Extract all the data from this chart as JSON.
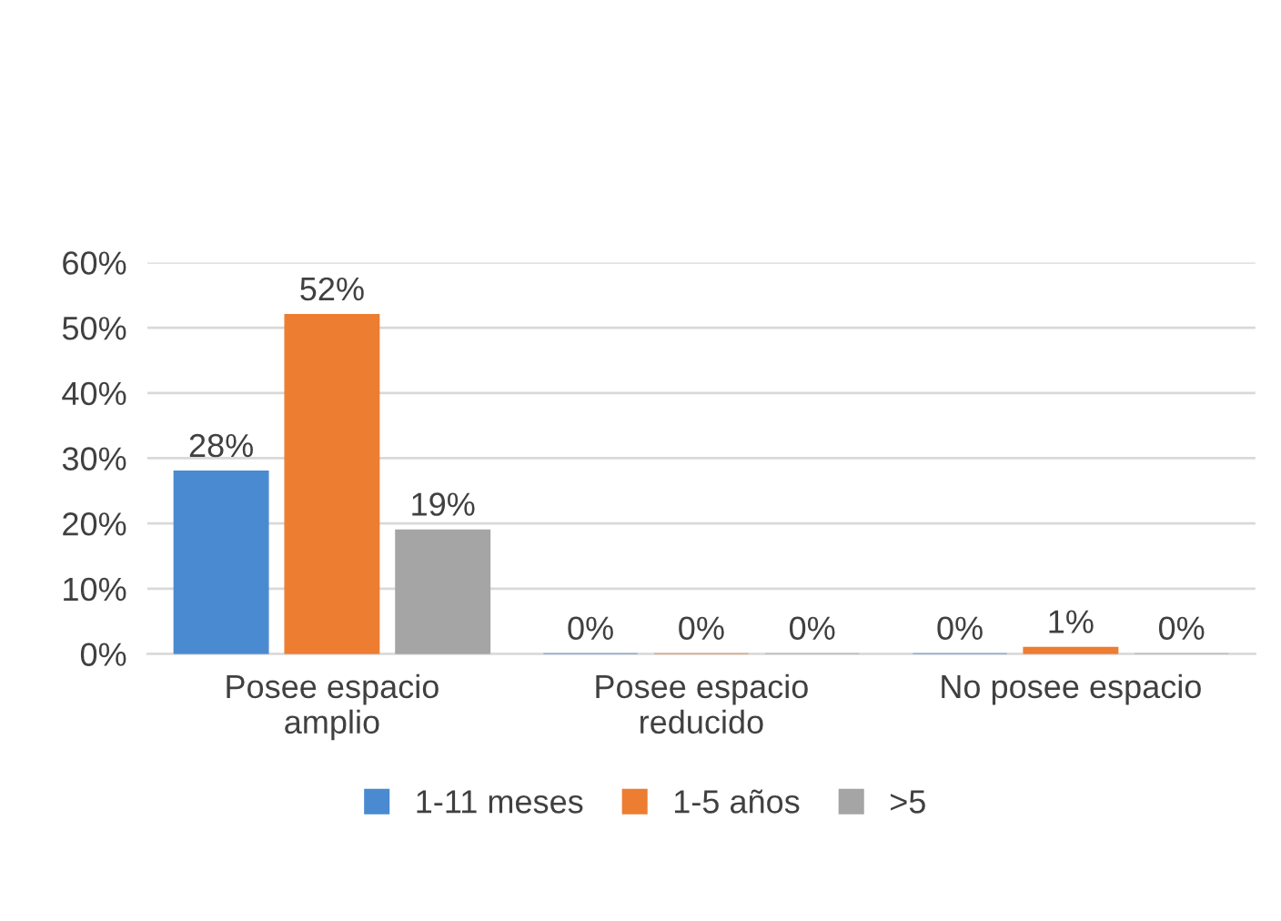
{
  "chart_data": {
    "type": "bar",
    "categories": [
      "Posee espacio\namplio",
      "Posee espacio\nreducido",
      "No posee espacio"
    ],
    "series": [
      {
        "name": "1-11 meses",
        "color": "#4a8ad0",
        "values": [
          28,
          0,
          0
        ],
        "value_labels": [
          "28%",
          "0%",
          "0%"
        ]
      },
      {
        "name": "1-5 años",
        "color": "#ed7d31",
        "values": [
          52,
          0,
          1
        ],
        "value_labels": [
          "52%",
          "0%",
          "1%"
        ]
      },
      {
        "name": ">5",
        "color": "#a5a5a5",
        "values": [
          19,
          0,
          0
        ],
        "value_labels": [
          "19%",
          "0%",
          "0%"
        ]
      }
    ],
    "ylim": [
      0,
      60
    ],
    "yticks": [
      {
        "value": 0,
        "label": "0%"
      },
      {
        "value": 10,
        "label": "10%"
      },
      {
        "value": 20,
        "label": "20%"
      },
      {
        "value": 30,
        "label": "30%"
      },
      {
        "value": 40,
        "label": "40%"
      },
      {
        "value": 50,
        "label": "50%"
      },
      {
        "value": 60,
        "label": "60%"
      }
    ],
    "grid": "y",
    "legend": "bottom"
  }
}
